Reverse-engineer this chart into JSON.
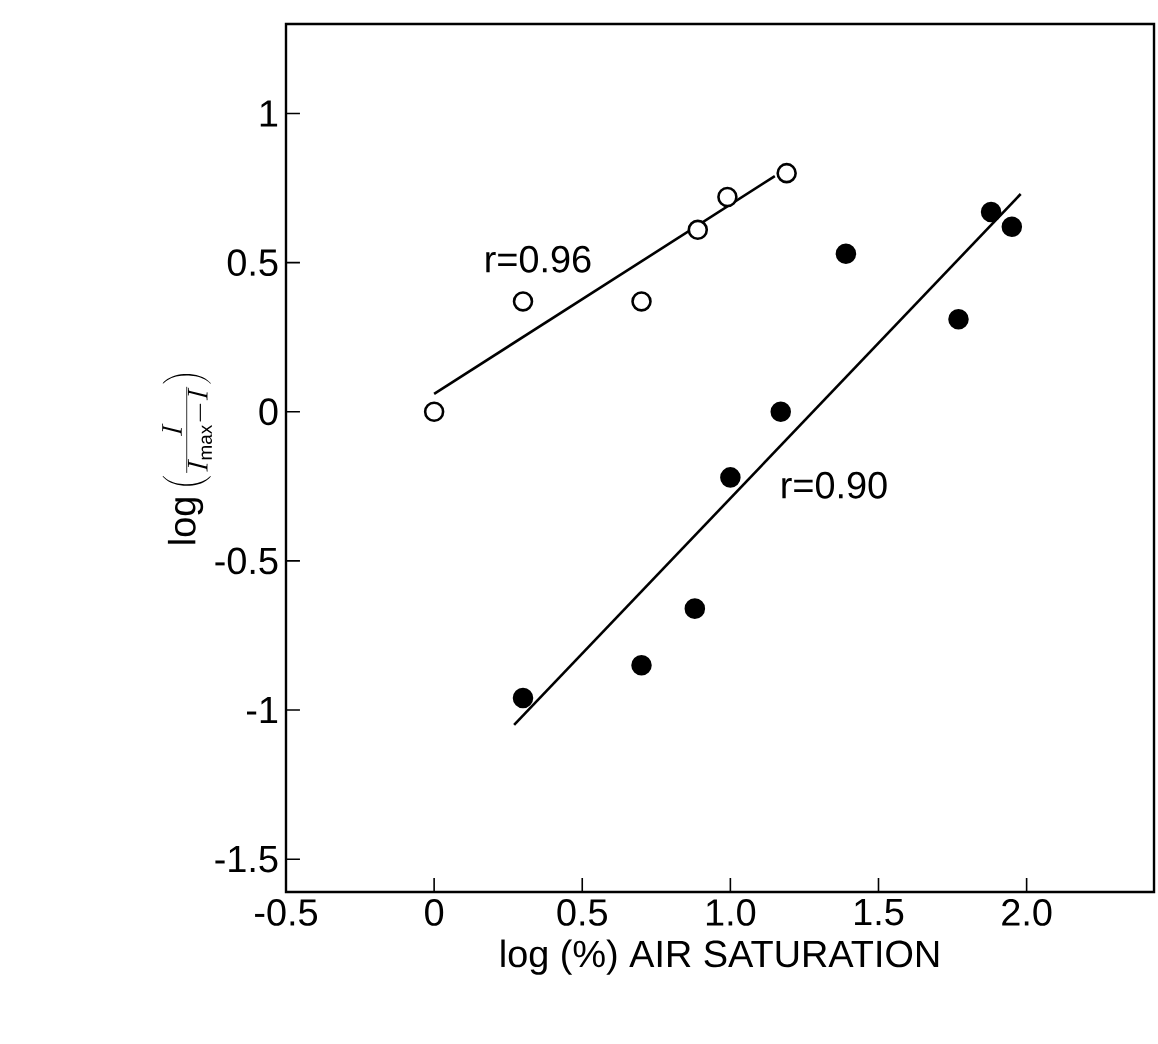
{
  "chart_data": {
    "type": "scatter",
    "xlabel": "log (%) AIR SATURATION",
    "ylabel": "\\log\\left(\\frac{I}{I_{\\mathrm{max}}-I}\\right)",
    "xlim": [
      -0.5,
      2.43
    ],
    "ylim": [
      -1.61,
      1.3
    ],
    "xticks": [
      -0.5,
      0,
      0.5,
      {
        "value": 1,
        "label": "1.0"
      },
      1.5,
      {
        "value": 2,
        "label": "2.0"
      }
    ],
    "yticks": [
      -1.5,
      -1,
      -0.5,
      0,
      0.5,
      1
    ],
    "marker": "circle",
    "series": [
      {
        "color": "#ffffff",
        "x": [
          0,
          0.3,
          0.7,
          0.89,
          0.99,
          1.19
        ],
        "values": [
          0,
          0.37,
          0.37,
          0.61,
          0.72,
          0.8
        ]
      },
      {
        "color": "#000000",
        "x": [
          0.3,
          0.7,
          0.88,
          1.0,
          1.17,
          1.39,
          1.77,
          1.88,
          1.95
        ],
        "values": [
          -0.96,
          -0.85,
          -0.66,
          -0.22,
          0,
          0.53,
          0.31,
          0.67,
          0.62
        ]
      },
      {
        "type": "line",
        "color": "#000000",
        "marker": "none",
        "x": [
          0.0,
          1.15
        ],
        "values": [
          0.06,
          0.79
        ]
      },
      {
        "type": "line",
        "color": "#000000",
        "marker": "none",
        "x": [
          0.27,
          1.98
        ],
        "values": [
          -1.05,
          0.73
        ]
      }
    ],
    "annotations": [
      "r=0.96",
      "r=0.90"
    ]
  }
}
